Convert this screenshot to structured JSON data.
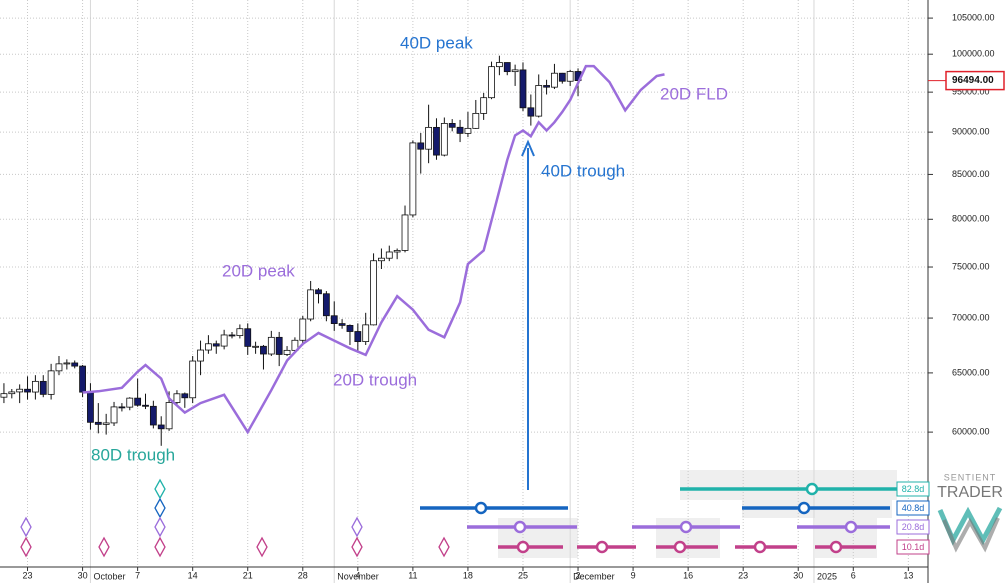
{
  "chart_data": {
    "type": "candlestick",
    "x": [
      -3,
      -2,
      -1,
      0,
      1,
      2,
      3,
      4,
      5,
      6,
      7,
      8,
      9,
      10,
      11,
      12,
      13,
      14,
      15,
      16,
      17,
      18,
      19,
      20,
      21,
      22,
      23,
      24,
      25,
      26,
      27,
      28,
      29,
      30,
      31,
      32,
      33,
      34,
      35,
      36,
      37,
      38,
      39,
      40,
      41,
      42,
      43,
      44,
      45,
      46,
      47,
      48,
      49,
      50,
      51,
      52,
      53,
      54,
      55,
      56,
      57,
      58,
      59,
      60,
      61,
      62,
      63,
      64,
      65,
      66,
      67,
      68,
      69,
      70
    ],
    "open": [
      62900,
      63200,
      63350,
      63580,
      63340,
      64260,
      63140,
      65180,
      65800,
      65880,
      65600,
      63330,
      60800,
      60630,
      60750,
      62080,
      62060,
      62820,
      62220,
      62130,
      60580,
      60270,
      62450,
      63190,
      62850,
      66050,
      67040,
      67610,
      67400,
      68420,
      68360,
      69000,
      67370,
      67380,
      66680,
      68200,
      66640,
      67010,
      67930,
      69910,
      72720,
      72340,
      70220,
      69480,
      69310,
      68740,
      67810,
      69360,
      75640,
      75900,
      76540,
      76700,
      80470,
      88700,
      87950,
      90580,
      87250,
      91070,
      90590,
      89850,
      90460,
      92310,
      94290,
      98330,
      98880,
      97670,
      97900,
      93010,
      91970,
      95860,
      95640,
      97460,
      96410,
      97690
    ],
    "high": [
      64100,
      63600,
      64000,
      64700,
      64800,
      64800,
      65800,
      66500,
      66200,
      66100,
      65700,
      64100,
      62400,
      61500,
      62500,
      62400,
      62900,
      64500,
      63200,
      62600,
      61300,
      63400,
      63500,
      63300,
      66500,
      67900,
      68400,
      67900,
      68900,
      68700,
      69400,
      69500,
      67800,
      67500,
      68800,
      68700,
      67400,
      68200,
      70200,
      73600,
      72900,
      72600,
      71600,
      69900,
      69400,
      69500,
      70500,
      76400,
      76900,
      77200,
      76900,
      81500,
      89000,
      89900,
      93400,
      91700,
      91800,
      91600,
      91500,
      92500,
      94000,
      94900,
      99000,
      99800,
      98900,
      98600,
      98900,
      94700,
      97300,
      96600,
      98700,
      97500,
      97900,
      98100
    ],
    "low": [
      62400,
      62800,
      62400,
      62700,
      62700,
      62900,
      62700,
      64800,
      65300,
      65400,
      62900,
      60200,
      59900,
      59800,
      60500,
      61700,
      61800,
      62100,
      61900,
      60300,
      58900,
      60100,
      62300,
      62000,
      62400,
      64800,
      66700,
      66700,
      67100,
      68100,
      68100,
      66600,
      66700,
      65300,
      66500,
      65600,
      66500,
      66800,
      67500,
      69700,
      71400,
      69700,
      68800,
      69000,
      67500,
      66800,
      67500,
      69300,
      74800,
      75600,
      75800,
      76500,
      80200,
      85100,
      86300,
      86700,
      87100,
      90100,
      88800,
      89400,
      90400,
      91500,
      94100,
      97200,
      97200,
      95800,
      92600,
      90800,
      91800,
      94700,
      95400,
      96100,
      95800,
      94500
    ],
    "close": [
      63200,
      63350,
      63580,
      63340,
      64260,
      63140,
      65180,
      65800,
      65880,
      65600,
      63330,
      60800,
      60630,
      60750,
      62080,
      62060,
      62820,
      62220,
      62130,
      60580,
      60270,
      62450,
      63190,
      62850,
      66050,
      67040,
      67610,
      67400,
      68420,
      68360,
      69000,
      67370,
      67380,
      66680,
      68200,
      66640,
      67010,
      67930,
      69910,
      72720,
      72340,
      70220,
      69480,
      69310,
      68740,
      67810,
      69360,
      75640,
      75900,
      76540,
      76700,
      80470,
      88700,
      87950,
      90580,
      87250,
      91070,
      90590,
      89850,
      90460,
      92310,
      94290,
      98330,
      98880,
      97670,
      97900,
      93010,
      91970,
      95860,
      95640,
      97460,
      96410,
      97690,
      96494
    ],
    "up_color": "#ffffff",
    "down_color": "#141a6b",
    "lines": [
      {
        "name": "20D FLD",
        "color": "#9b6ddb",
        "x": [
          7,
          9,
          12,
          14,
          15,
          17,
          18,
          20,
          22,
          25,
          28,
          31,
          33,
          35,
          37,
          39,
          41,
          43,
          45,
          47,
          49,
          51,
          53,
          55,
          56,
          58,
          60,
          61,
          62,
          63,
          64,
          65,
          66,
          67,
          68,
          69,
          71,
          72,
          74,
          76,
          78,
          80,
          81
        ],
        "values": [
          63300,
          63400,
          63700,
          65100,
          65700,
          64500,
          62800,
          61600,
          62400,
          63100,
          60000,
          63500,
          66100,
          67600,
          68600,
          67900,
          67200,
          66600,
          69600,
          72100,
          70800,
          68900,
          68200,
          71500,
          75300,
          76700,
          83200,
          86700,
          89600,
          90200,
          89500,
          91200,
          90200,
          91200,
          92500,
          94000,
          98400,
          98400,
          96300,
          92700,
          95300,
          97100,
          97300
        ]
      }
    ],
    "annotations": [
      {
        "text": "40D peak",
        "color": "#2574d0"
      },
      {
        "text": "40D trough",
        "color": "#2574d0"
      },
      {
        "text": "20D peak",
        "color": "#9b6ddb"
      },
      {
        "text": "20D trough",
        "color": "#9b6ddb"
      },
      {
        "text": "80D trough",
        "color": "#26a69a"
      }
    ],
    "y_scale": "log",
    "ylim": [
      50000,
      107600
    ],
    "xlim": [
      -3.5,
      114.5
    ],
    "yticks": [
      {
        "value": 60000,
        "label": "60000.00"
      },
      {
        "value": 65000,
        "label": "65000.00"
      },
      {
        "value": 70000,
        "label": "70000.00"
      },
      {
        "value": 75000,
        "label": "75000.00"
      },
      {
        "value": 80000,
        "label": "80000.00"
      },
      {
        "value": 85000,
        "label": "85000.00"
      },
      {
        "value": 90000,
        "label": "90000.00"
      },
      {
        "value": 95000,
        "label": "95000.00"
      },
      {
        "value": 100000,
        "label": "100000.00"
      },
      {
        "value": 105000,
        "label": "105000.00"
      }
    ],
    "xticks": [
      {
        "value": 0,
        "label": "23"
      },
      {
        "value": 7,
        "label": "30"
      },
      {
        "value": 14,
        "label": "7"
      },
      {
        "value": 21,
        "label": "14"
      },
      {
        "value": 28,
        "label": "21"
      },
      {
        "value": 35,
        "label": "28"
      },
      {
        "value": 42,
        "label": "4"
      },
      {
        "value": 49,
        "label": "11"
      },
      {
        "value": 56,
        "label": "18"
      },
      {
        "value": 63,
        "label": "25"
      },
      {
        "value": 70,
        "label": "2"
      },
      {
        "value": 77,
        "label": "9"
      },
      {
        "value": 84,
        "label": "16"
      },
      {
        "value": 91,
        "label": "23"
      },
      {
        "value": 98,
        "label": "30"
      },
      {
        "value": 105,
        "label": "6"
      },
      {
        "value": 112,
        "label": "13"
      }
    ],
    "months": [
      {
        "value": 8,
        "label": "October"
      },
      {
        "value": 39,
        "label": "November"
      },
      {
        "value": 69,
        "label": "December"
      },
      {
        "value": 100,
        "label": "2025"
      }
    ],
    "last_price": {
      "value": 96494,
      "label": "96494.00"
    },
    "grid": true,
    "cycles": [
      {
        "label": "82.8d",
        "color": "#20b2aa"
      },
      {
        "label": "40.8d",
        "color": "#1565c0"
      },
      {
        "label": "20.8d",
        "color": "#9b6ddb"
      },
      {
        "label": "10.1d",
        "color": "#c2408a"
      }
    ],
    "brand": {
      "line1": "SENTIENT",
      "line2": "TRADER"
    }
  }
}
